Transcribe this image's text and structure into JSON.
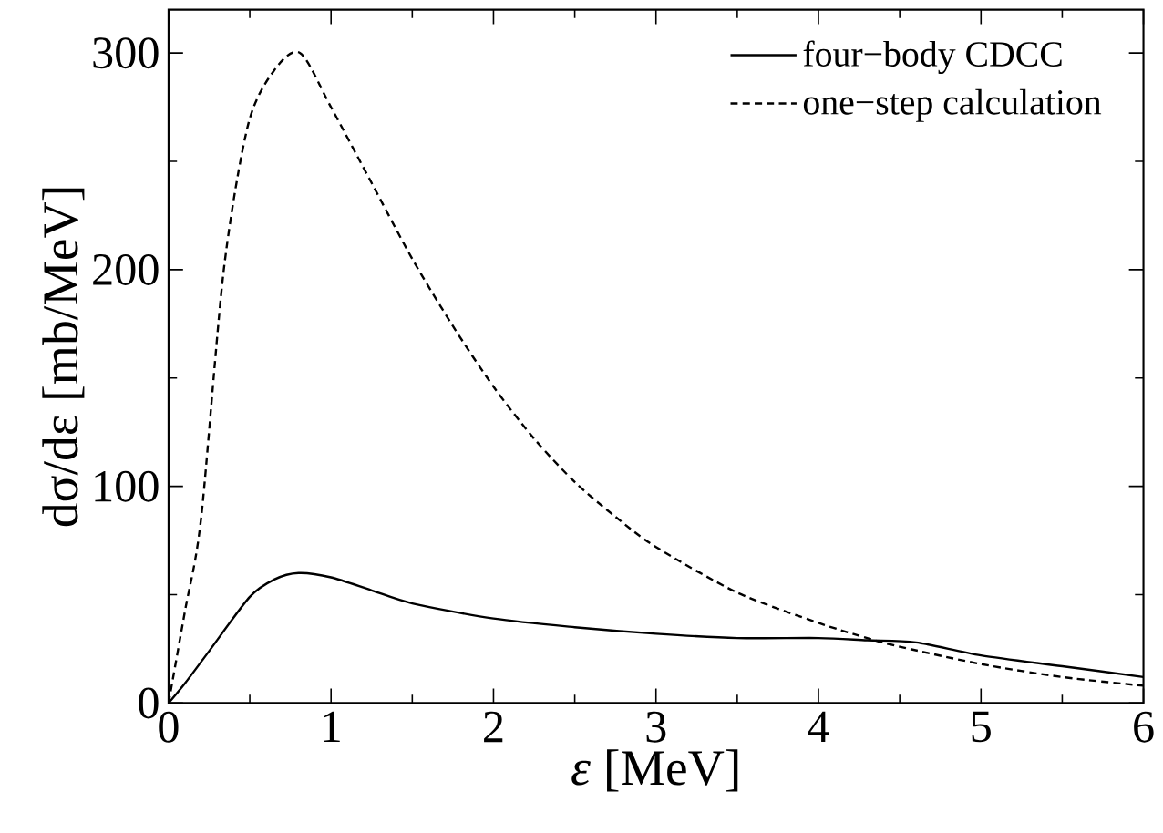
{
  "chart_data": {
    "type": "line",
    "xlabel": "*ε* [MeV]",
    "ylabel": "dσ/dε [mb/MeV]",
    "xlim": [
      0,
      6
    ],
    "ylim": [
      0,
      320
    ],
    "xticks": [
      0,
      1,
      2,
      3,
      4,
      5,
      6
    ],
    "yticks": [
      0,
      100,
      200,
      300
    ],
    "legend": "top right",
    "grid": false,
    "series": [
      {
        "name": "four−body CDCC",
        "color": "#000000",
        "line_style": "solid",
        "x": [
          0,
          0.1,
          0.25,
          0.5,
          0.65,
          0.8,
          1,
          1.25,
          1.5,
          2,
          2.5,
          3,
          3.5,
          4,
          4.3,
          4.6,
          5,
          5.5,
          6
        ],
        "values": [
          0,
          9,
          24,
          49,
          57,
          60,
          58,
          52,
          46,
          39,
          35,
          32,
          30,
          30,
          29,
          28,
          22,
          17,
          12
        ]
      },
      {
        "name": "one−step calculation",
        "color": "#000000",
        "line_style": "dashed",
        "x": [
          0,
          0.1,
          0.2,
          0.34,
          0.49,
          0.65,
          0.81,
          1,
          1.25,
          1.5,
          1.75,
          2,
          2.25,
          2.5,
          2.75,
          3,
          3.5,
          4,
          4.3,
          4.5,
          5,
          5.5,
          6
        ],
        "values": [
          0,
          42,
          85,
          200,
          267,
          292,
          300,
          275,
          240,
          205,
          174,
          146,
          122,
          102,
          86,
          72,
          51,
          37,
          30,
          26,
          18,
          12,
          8
        ]
      }
    ]
  }
}
